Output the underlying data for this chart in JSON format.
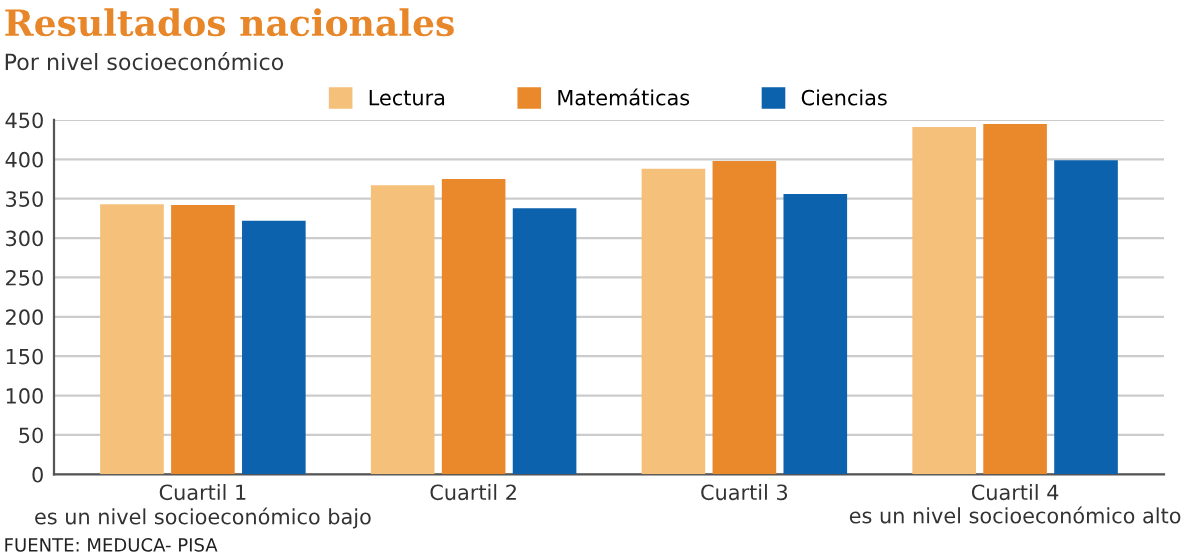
{
  "chart_data": {
    "type": "bar",
    "title": "Resultados nacionales",
    "subtitle": "Por nivel socioeconómico",
    "categories": [
      "Cuartil 1\nes un nivel socioeconómico bajo",
      "Cuartil 2",
      "Cuartil 3",
      "Cuartil 4\nes un nivel socioeconómico alto"
    ],
    "series": [
      {
        "name": "Lectura",
        "color": "#f4c07a",
        "values": [
          343,
          367,
          388,
          441
        ]
      },
      {
        "name": "Matemáticas",
        "color": "#ea892c",
        "values": [
          342,
          375,
          398,
          445
        ]
      },
      {
        "name": "Ciencias",
        "color": "#0c62ad",
        "values": [
          322,
          338,
          356,
          399
        ]
      }
    ],
    "ylim": [
      0,
      450
    ],
    "yticks": [
      0,
      50,
      100,
      150,
      200,
      250,
      300,
      350,
      400,
      450
    ],
    "grid": "y",
    "legend": "top",
    "annotations": [
      "FUENTE: MEDUCA- PISA"
    ]
  }
}
